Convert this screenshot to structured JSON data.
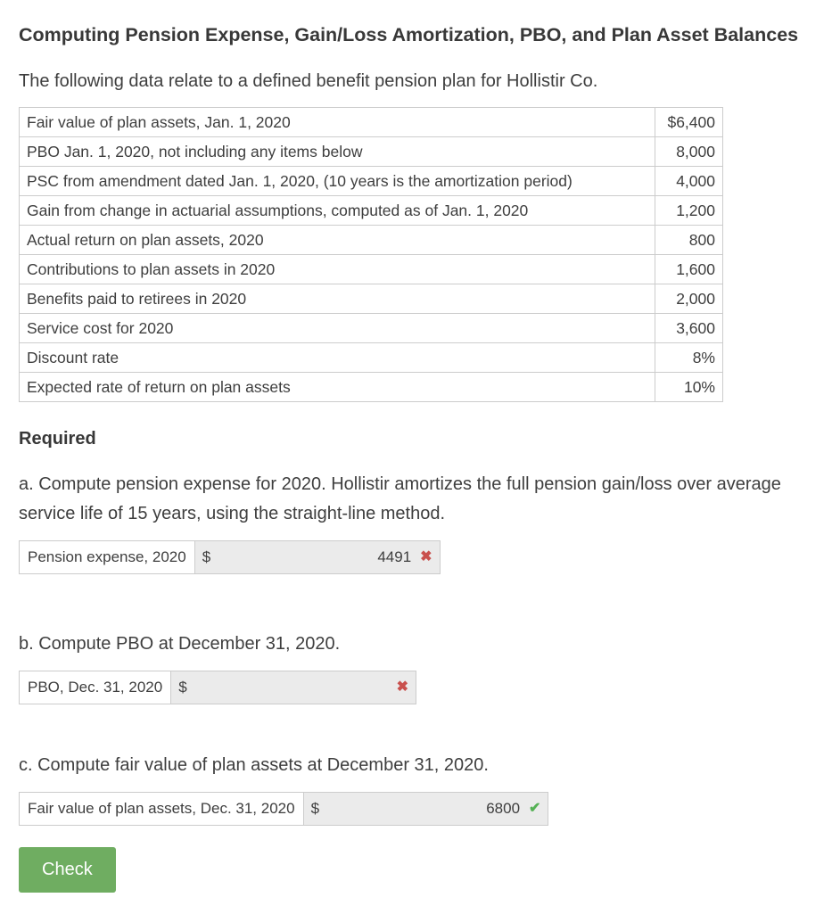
{
  "page": {
    "title": "Computing Pension Expense, Gain/Loss Amortization, PBO, and Plan Asset Balances",
    "intro": "The following data relate to a defined benefit pension plan for Hollistir Co."
  },
  "data_table": {
    "rows": [
      {
        "label": "Fair value of plan assets, Jan. 1, 2020",
        "value": "$6,400"
      },
      {
        "label": "PBO Jan. 1, 2020, not including any items below",
        "value": "8,000"
      },
      {
        "label": "PSC from amendment dated Jan. 1, 2020, (10 years is the amortization period)",
        "value": "4,000"
      },
      {
        "label": "Gain from change in actuarial assumptions, computed as of Jan. 1, 2020",
        "value": "1,200"
      },
      {
        "label": "Actual return on plan assets, 2020",
        "value": "800"
      },
      {
        "label": "Contributions to plan assets in 2020",
        "value": "1,600"
      },
      {
        "label": "Benefits paid to retirees in 2020",
        "value": "2,000"
      },
      {
        "label": "Service cost for 2020",
        "value": "3,600"
      },
      {
        "label": "Discount rate",
        "value": "8%"
      },
      {
        "label": "Expected rate of return on plan assets",
        "value": "10%"
      }
    ]
  },
  "required": {
    "heading": "Required",
    "parts": [
      {
        "prompt": "a. Compute pension expense for 2020. Hollistir amortizes the full pension gain/loss over average service life of 15 years, using the straight-line method.",
        "answer_label": "Pension expense, 2020",
        "currency": "$",
        "value": "4491",
        "status": "incorrect",
        "mark_glyph": "✖"
      },
      {
        "prompt": "b. Compute PBO at December 31, 2020.",
        "answer_label": "PBO, Dec. 31, 2020",
        "currency": "$",
        "value": "",
        "status": "incorrect",
        "mark_glyph": "✖"
      },
      {
        "prompt": "c. Compute fair value of plan assets at December 31, 2020.",
        "answer_label": "Fair value of plan assets, Dec. 31, 2020",
        "currency": "$",
        "value": "6800",
        "status": "correct",
        "mark_glyph": "✔"
      }
    ]
  },
  "check_button": {
    "label": "Check"
  },
  "colors": {
    "button_green": "#6fad61",
    "mark_red": "#c9504d",
    "mark_green": "#55b155",
    "table_border": "#cccccc",
    "input_cell_bg": "#ebebeb",
    "text": "#3e3e3e"
  }
}
